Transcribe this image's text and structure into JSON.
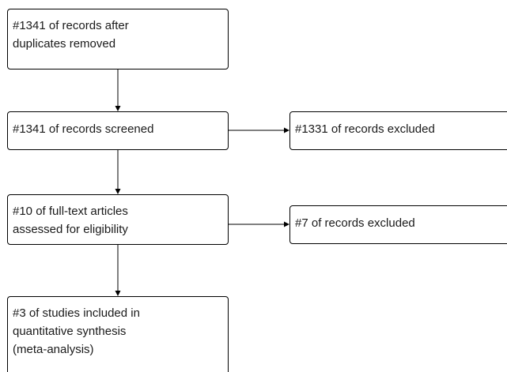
{
  "flow": {
    "duplicates_removed": "#1341 of records after\nduplicates removed",
    "screened": "#1341 of records screened",
    "screened_excluded": "#1331 of records excluded",
    "full_text_assessed": "#10 of full-text articles\nassessed for eligibility",
    "full_text_excluded": "#7 of records excluded",
    "included_studies": "#3 of studies included in\nquantitative synthesis\n(meta-analysis)"
  },
  "colors": {
    "box_border": "#000000",
    "arrow": "#000000",
    "text": "#1a1a1a",
    "background": "#ffffff"
  }
}
